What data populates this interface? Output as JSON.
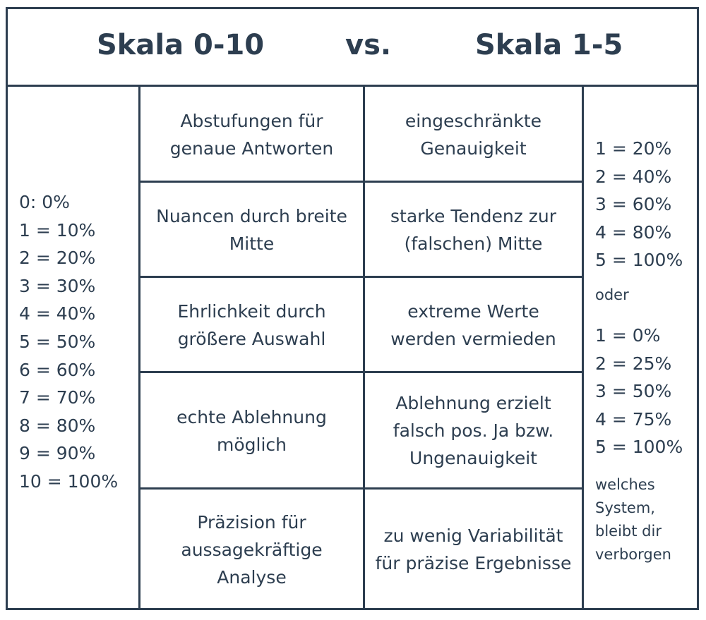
{
  "header": {
    "left_title": "Skala 0-10",
    "vs": "vs.",
    "right_title": "Skala 1-5"
  },
  "left_scale": [
    "0: 0%",
    "1 = 10%",
    "2 = 20%",
    "3 = 30%",
    "4 = 40%",
    "5 = 50%",
    "6 = 60%",
    "7 = 70%",
    "8 = 80%",
    "9 = 90%",
    "10 = 100%"
  ],
  "rows": [
    {
      "pro": "Abstufungen für genaue Antworten",
      "con": "eingeschränkte Genauigkeit"
    },
    {
      "pro": "Nuancen durch breite Mitte",
      "con": "starke Tendenz zur (falschen) Mitte"
    },
    {
      "pro": "Ehrlichkeit durch größere Auswahl",
      "con": "extreme Werte werden vermieden"
    },
    {
      "pro": "echte Ablehnung möglich",
      "con": "Ablehnung erzielt falsch pos. Ja bzw. Ungenauigkeit"
    },
    {
      "pro": "Präzision für aussagekräftige Analyse",
      "con": "zu wenig Variabilität für präzise Ergebnisse"
    }
  ],
  "right_scale_a": [
    "1 = 20%",
    "2 = 40%",
    "3 = 60%",
    "4 = 80%",
    "5 = 100%"
  ],
  "right_or": "oder",
  "right_scale_b": [
    "1 = 0%",
    "2 = 25%",
    "3 = 50%",
    "4 = 75%",
    "5 = 100%"
  ],
  "right_note": "welches\nSystem,\nbleibt dir\nverborgen"
}
